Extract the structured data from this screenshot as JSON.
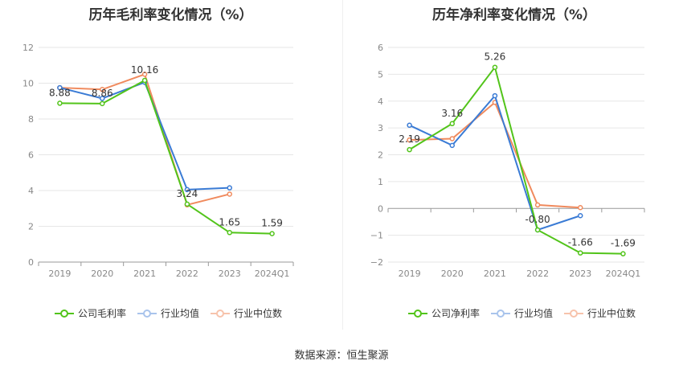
{
  "source_label": "数据来源：恒生聚源",
  "chart_data": [
    {
      "type": "line",
      "title": "历年毛利率变化情况（%）",
      "categories": [
        "2019",
        "2020",
        "2021",
        "2022",
        "2023",
        "2024Q1"
      ],
      "ylim": [
        0,
        12
      ],
      "yticks": [
        "0",
        "2",
        "4",
        "6",
        "8",
        "10",
        "12"
      ],
      "ytick_values": [
        0,
        2,
        4,
        6,
        8,
        10,
        12
      ],
      "grid": true,
      "legend_position": "bottom-center",
      "series": [
        {
          "name": "公司毛利率",
          "color": "#52c41a",
          "values": [
            8.88,
            8.86,
            10.16,
            3.24,
            1.65,
            1.59
          ],
          "labels": [
            "8.88",
            "8.86",
            "10.16",
            "3.24",
            "1.65",
            "1.59"
          ]
        },
        {
          "name": "行业均值",
          "color": "#3a7bd5",
          "values": [
            9.75,
            9.15,
            10.05,
            4.05,
            4.15,
            null
          ]
        },
        {
          "name": "行业中位数",
          "color": "#f08a5d",
          "values": [
            9.75,
            9.65,
            10.5,
            3.2,
            3.8,
            null
          ]
        }
      ]
    },
    {
      "type": "line",
      "title": "历年净利率变化情况（%）",
      "categories": [
        "2019",
        "2020",
        "2021",
        "2022",
        "2023",
        "2024Q1"
      ],
      "ylim": [
        -2,
        6
      ],
      "yticks": [
        "−2",
        "−1",
        "0",
        "1",
        "2",
        "3",
        "4",
        "5",
        "6"
      ],
      "ytick_values": [
        -2,
        -1,
        0,
        1,
        2,
        3,
        4,
        5,
        6
      ],
      "grid": true,
      "legend_position": "bottom-center",
      "series": [
        {
          "name": "公司净利率",
          "color": "#52c41a",
          "values": [
            2.19,
            3.16,
            5.26,
            -0.8,
            -1.66,
            -1.69
          ],
          "labels": [
            "2.19",
            "3.16",
            "5.26",
            "-0.80",
            "-1.66",
            "-1.69"
          ]
        },
        {
          "name": "行业均值",
          "color": "#3a7bd5",
          "values": [
            3.1,
            2.35,
            4.2,
            -0.8,
            -0.27,
            null
          ]
        },
        {
          "name": "行业中位数",
          "color": "#f08a5d",
          "values": [
            2.55,
            2.6,
            3.95,
            0.13,
            0.03,
            null
          ]
        }
      ]
    }
  ]
}
